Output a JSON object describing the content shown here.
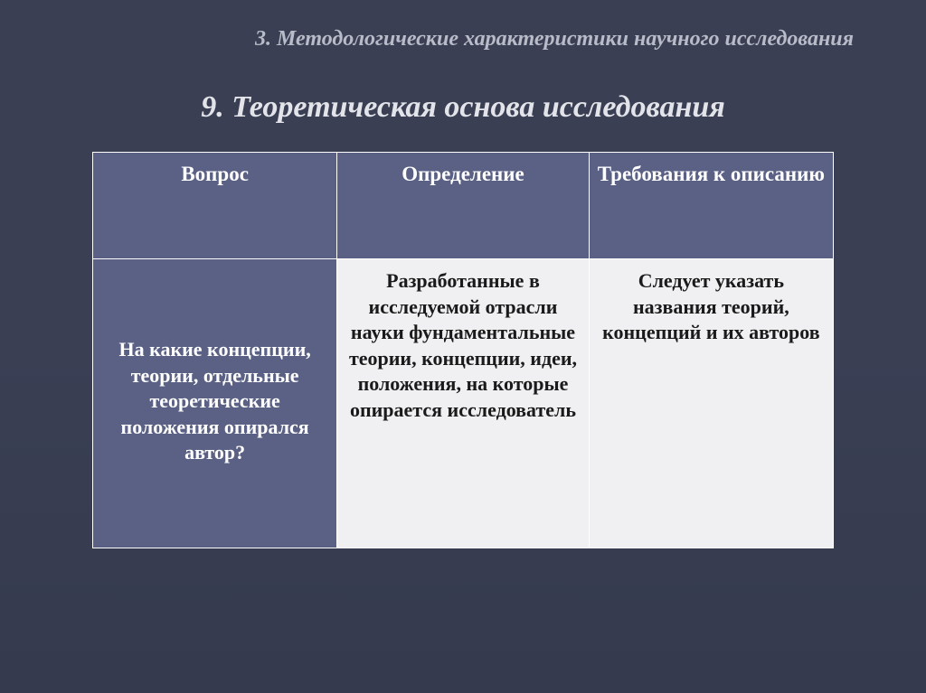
{
  "pretitle": "3. Методологические характеристики научного исследования",
  "title": "9. Теоретическая основа исследования",
  "table": {
    "columns": [
      "Вопрос",
      "Определение",
      "Требования к описанию"
    ],
    "column_widths": [
      "33%",
      "34%",
      "33%"
    ],
    "row": {
      "question": "На какие концепции, теории, отдельные теоретические положения опирался автор?",
      "definition": "Разработанные в исследуемой отрасли науки фундаментальные теории, концепции, идеи, положения, на которые опирается исследователь",
      "requirements": "Следует указать названия теорий, концепций и их авторов"
    },
    "header_bg": "#5a6184",
    "header_fg": "#ffffff",
    "rowhead_bg": "#5a6184",
    "rowhead_fg": "#ffffff",
    "cell_bg": "#f0f0f2",
    "cell_fg": "#1a1a1a",
    "border_color": "#ffffff",
    "font_size_header": 23,
    "font_size_body": 22
  },
  "background_gradient": [
    "#3a3f54",
    "#353a4e"
  ],
  "text_color_pretitle": "#b8bcc8",
  "text_color_title": "#e2e4ea",
  "fontsize_pretitle": 24,
  "fontsize_title": 34
}
